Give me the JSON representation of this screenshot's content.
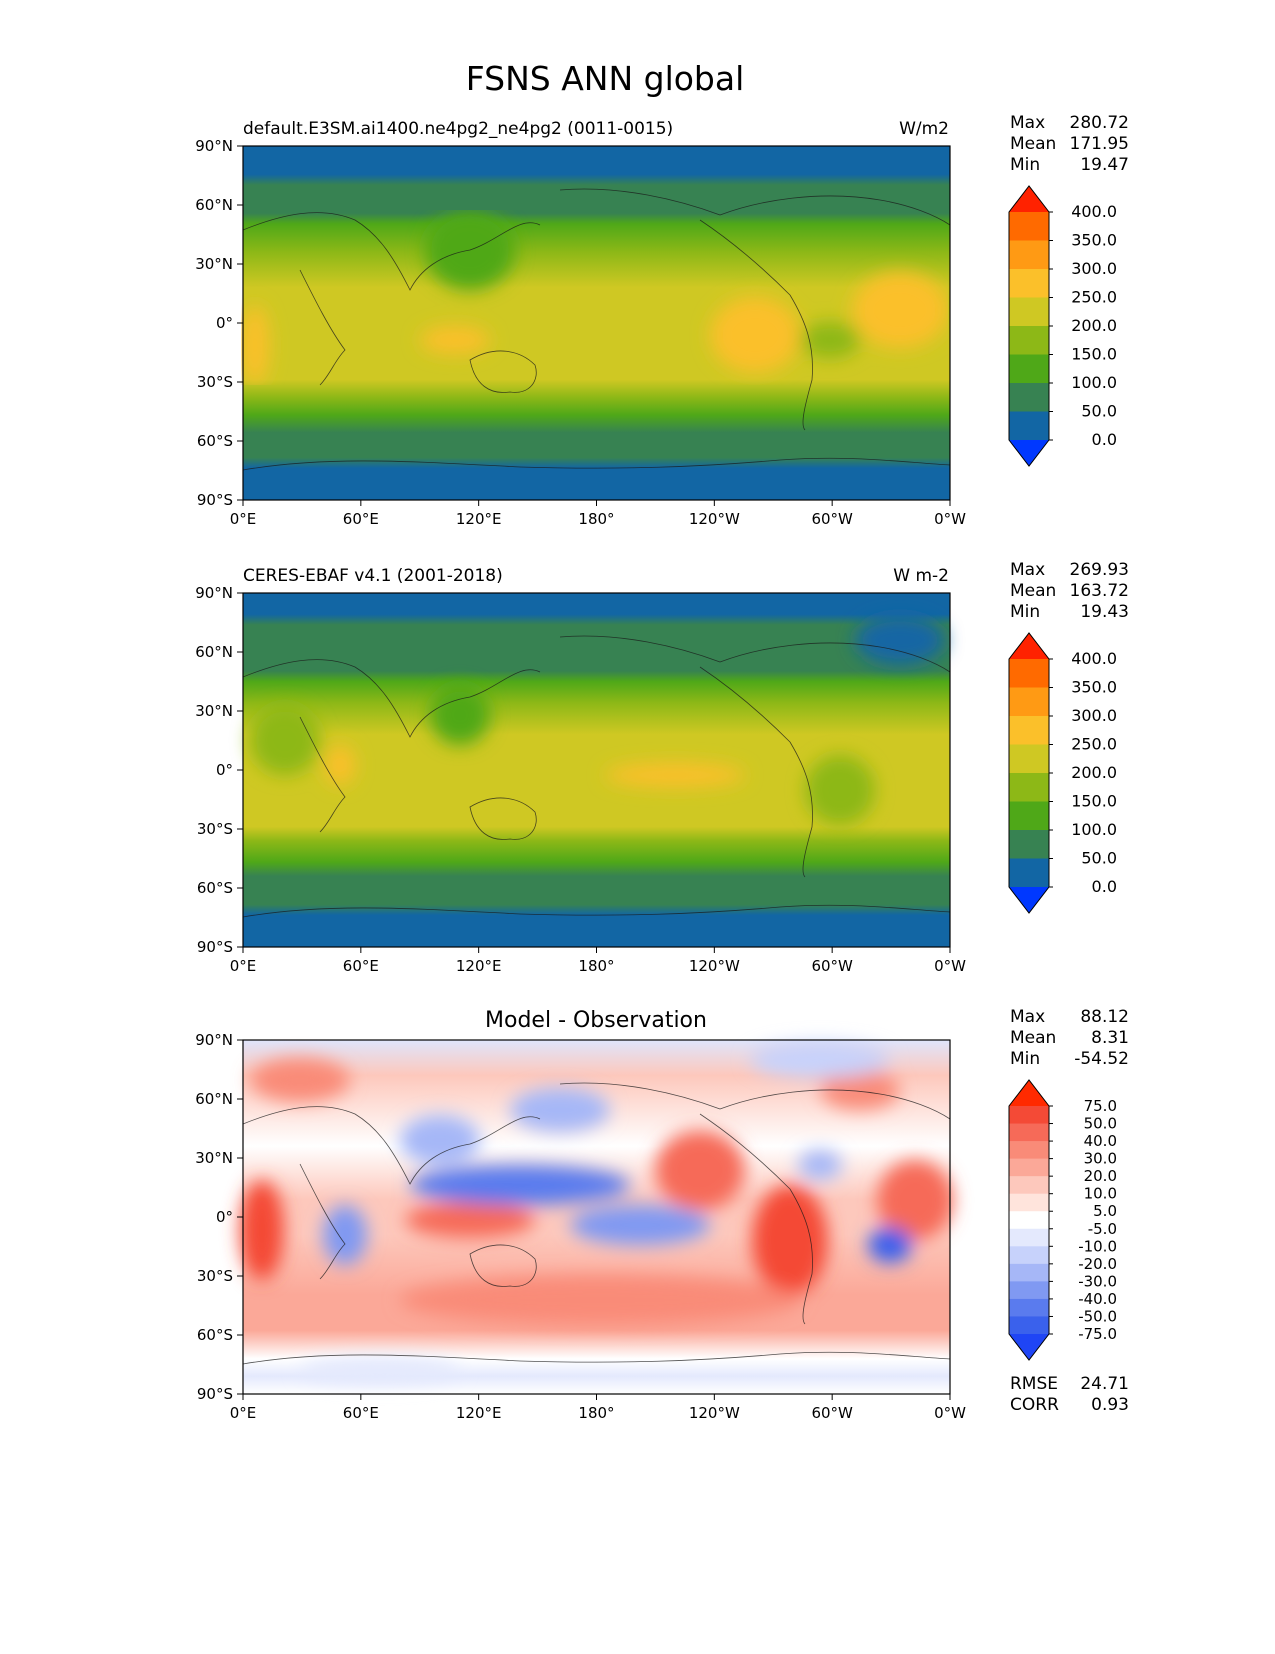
{
  "figure": {
    "title": "FSNS ANN global"
  },
  "axes_ticks": {
    "lat_labels": [
      "90°N",
      "60°N",
      "30°N",
      "0°",
      "30°S",
      "60°S",
      "90°S"
    ],
    "lon_labels": [
      "0°E",
      "60°E",
      "120°E",
      "180°",
      "120°W",
      "60°W",
      "0°W"
    ]
  },
  "panels": [
    {
      "left_title": "default.E3SM.ai1400.ne4pg2_ne4pg2 (0011-0015)",
      "center_title": "",
      "units": "W/m2",
      "stats": [
        {
          "label": "Max",
          "value": "280.72"
        },
        {
          "label": "Mean",
          "value": "171.95"
        },
        {
          "label": "Min",
          "value": "19.47"
        }
      ],
      "colorbar": {
        "ticks": [
          "400.0",
          "350.0",
          "300.0",
          "250.0",
          "200.0",
          "150.0",
          "100.0",
          "50.0",
          "0.0"
        ],
        "colors": [
          "#ff2200",
          "#ff6a00",
          "#ff9a14",
          "#fbc02a",
          "#cfc823",
          "#8db817",
          "#4fa818",
          "#378252",
          "#1266a4",
          "#0038ff"
        ]
      }
    },
    {
      "left_title": "CERES-EBAF v4.1 (2001-2018)",
      "center_title": "",
      "units": "W m-2",
      "stats": [
        {
          "label": "Max",
          "value": "269.93"
        },
        {
          "label": "Mean",
          "value": "163.72"
        },
        {
          "label": "Min",
          "value": "19.43"
        }
      ],
      "colorbar": {
        "ticks": [
          "400.0",
          "350.0",
          "300.0",
          "250.0",
          "200.0",
          "150.0",
          "100.0",
          "50.0",
          "0.0"
        ],
        "colors": [
          "#ff2200",
          "#ff6a00",
          "#ff9a14",
          "#fbc02a",
          "#cfc823",
          "#8db817",
          "#4fa818",
          "#378252",
          "#1266a4",
          "#0038ff"
        ]
      }
    },
    {
      "left_title": "",
      "center_title": "Model - Observation",
      "units": "",
      "stats": [
        {
          "label": "Max",
          "value": "88.12"
        },
        {
          "label": "Mean",
          "value": "8.31"
        },
        {
          "label": "Min",
          "value": "-54.52"
        }
      ],
      "extra_stats": [
        {
          "label": "RMSE",
          "value": "24.71"
        },
        {
          "label": "CORR",
          "value": "0.93"
        }
      ],
      "colorbar": {
        "ticks": [
          "75.0",
          "50.0",
          "40.0",
          "30.0",
          "20.0",
          "10.0",
          "5.0",
          "-5.0",
          "-10.0",
          "-20.0",
          "-30.0",
          "-40.0",
          "-50.0",
          "-75.0"
        ],
        "colors": [
          "#ff2a00",
          "#f44a36",
          "#f66a58",
          "#f98b78",
          "#fba898",
          "#fdc8bc",
          "#ffe4dc",
          "#ffffff",
          "#e4e9fd",
          "#c7d2fb",
          "#a6b7f7",
          "#8099f2",
          "#5a7bee",
          "#3a61ec",
          "#1f45f5"
        ]
      }
    }
  ]
}
